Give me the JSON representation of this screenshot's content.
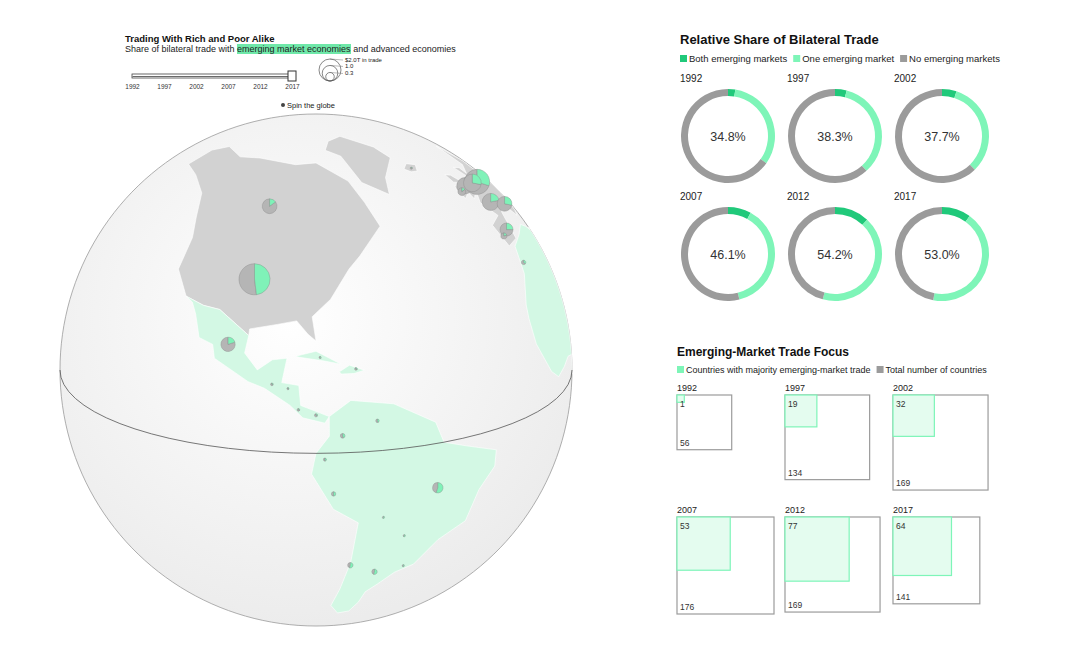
{
  "chart_data": [
    {
      "type": "map",
      "title": "Trading With Rich and Poor Alike",
      "subtitle": [
        {
          "text": "Share of bilateral trade with "
        },
        {
          "text": "emerging market economies",
          "color": "#6fe8a9"
        },
        {
          "text": " and advanced economies"
        }
      ],
      "annotations": [
        "Spin the globe"
      ],
      "xlim": [
        1992,
        2017
      ],
      "xticks": [
        1992,
        1997,
        2002,
        2007,
        2012,
        2017
      ],
      "selected": 2017,
      "size_legend": {
        "values": [
          2.0,
          1.0,
          0.3
        ],
        "value_labels": [
          "$2.0T in trade",
          "1.0",
          "0.3"
        ]
      },
      "lon": [
        -98,
        -100,
        -102,
        -51,
        -2,
        2.5,
        10,
        5.3,
        -3.7,
        12.5,
        -8,
        -8,
        -19,
        -7,
        -90.3,
        -86.5,
        -84,
        -80,
        -79,
        -70.5,
        -74,
        -66,
        -76,
        -71,
        -64,
        -78,
        -64,
        -58,
        -56
      ],
      "lat": [
        39,
        58,
        23.5,
        -11,
        53.5,
        46.5,
        51,
        52.2,
        40,
        42.5,
        39.5,
        53.2,
        64.8,
        32,
        15.5,
        14.7,
        10,
        8.8,
        21.8,
        19,
        4,
        7,
        -10,
        -31,
        -34,
        -1.5,
        -17,
        -23,
        -33
      ],
      "values": [
        4.0,
        0.9,
        0.85,
        0.45,
        1.1,
        1.2,
        2.6,
        1.3,
        0.7,
        0.9,
        0.15,
        0.25,
        0.02,
        0.08,
        0.03,
        0.02,
        0.03,
        0.04,
        0.02,
        0.03,
        0.09,
        0.05,
        0.08,
        0.12,
        0.12,
        0.04,
        0.02,
        0.02,
        0.02
      ],
      "shares": [
        48,
        15,
        20,
        55,
        25,
        22,
        30,
        28,
        25,
        28,
        20,
        15,
        20,
        35,
        30,
        30,
        30,
        30,
        40,
        30,
        45,
        45,
        50,
        55,
        55,
        45,
        60,
        60,
        55
      ],
      "colors": [
        "#7ff2b8",
        "#b5b5b5"
      ]
    },
    {
      "type": "donut",
      "title": "Relative Share of Bilateral Trade",
      "legend": "top",
      "categories": [
        "1992",
        "1997",
        "2002",
        "2007",
        "2012",
        "2017"
      ],
      "series": [
        {
          "name": "Both emerging markets",
          "color": "#20c97a",
          "values": [
            2.5,
            4,
            5,
            8,
            12,
            10
          ]
        },
        {
          "name": "One emerging market",
          "color": "#7ef5b8",
          "values": [
            32.3,
            34.3,
            32.7,
            38.1,
            42.2,
            43.0
          ]
        },
        {
          "name": "No emerging markets",
          "color": "#9b9b9b",
          "values": [
            65.2,
            61.7,
            62.3,
            53.9,
            45.8,
            47.0
          ]
        }
      ],
      "totals": {
        "values": [
          34.8,
          38.3,
          37.7,
          46.1,
          54.2,
          53.0
        ],
        "value_labels": [
          "34.8%",
          "38.3%",
          "37.7%",
          "46.1%",
          "54.2%",
          "53.0%"
        ]
      }
    },
    {
      "type": "square",
      "title": "Emerging-Market Trade Focus",
      "legend": "top",
      "data_labels": true,
      "categories": [
        "1992",
        "1997",
        "2002",
        "2007",
        "2012",
        "2017"
      ],
      "series": [
        {
          "name": "Countries with majority emerging-market trade",
          "color": "#7ef5b8",
          "values": [
            1,
            19,
            32,
            53,
            77,
            64
          ]
        },
        {
          "name": "Total number of countries",
          "color": "#9b9b9b",
          "values": [
            56,
            134,
            169,
            176,
            169,
            141
          ]
        }
      ]
    }
  ]
}
